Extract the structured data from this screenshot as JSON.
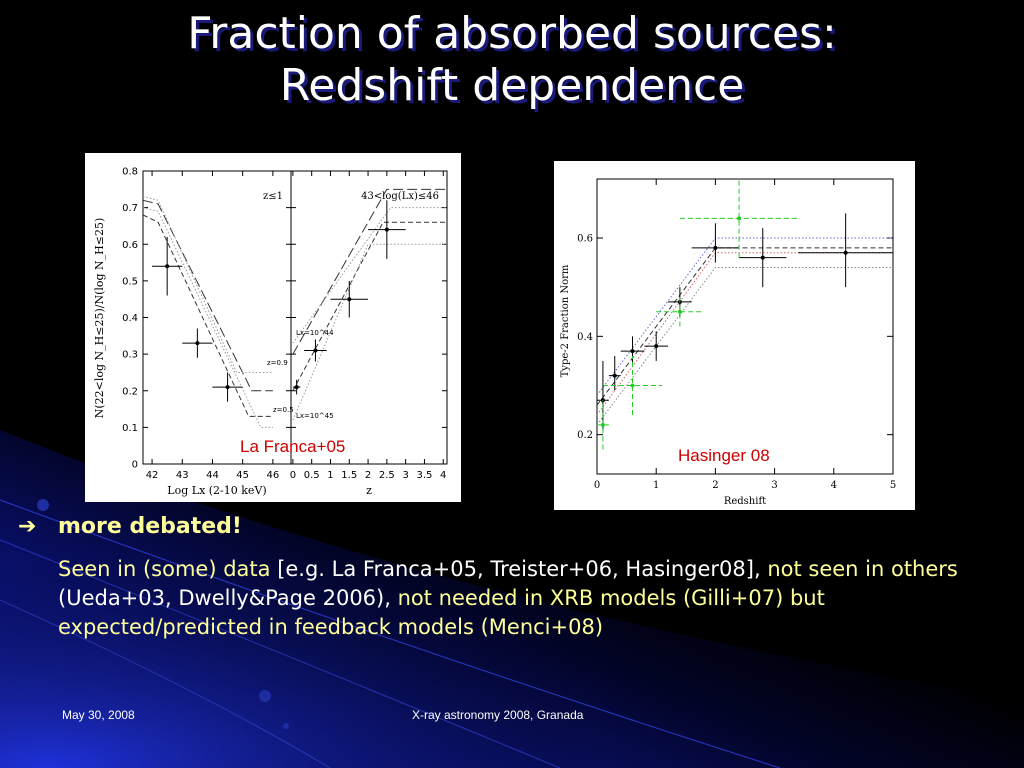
{
  "slide": {
    "title_line1": "Fraction of absorbed sources:",
    "title_line2": "Redshift dependence",
    "bullet_label": "more debated!",
    "body": {
      "p1": "Seen in (some) data ",
      "p2": "[e.g. La Franca+05, Treister+06, Hasinger08],",
      "p3": "not seen in others ",
      "p4": "(Ueda+03, Dwelly&Page 2006),",
      "p5": " not needed in XRB models (Gilli+07) but expected/predicted  in feedback models (Menci+08)"
    },
    "footer_date": "May 30, 2008",
    "footer_event": "X-ray astronomy 2008, Granada",
    "colors": {
      "background": "#000000",
      "title": "#ffffff",
      "text": "#ffff99",
      "caption": "#cc0000"
    }
  },
  "chart_data": [
    {
      "type": "line",
      "caption": "La Franca+05",
      "ylabel": "N(22<log N_H≤25)/N(log N_H≤25)",
      "ylim": [
        0,
        0.8
      ],
      "yticks": [
        "0",
        "0.1",
        "0.2",
        "0.3",
        "0.4",
        "0.5",
        "0.6",
        "0.7",
        "0.8"
      ],
      "panels": [
        {
          "annotation": "z≤1",
          "xlabel": "Log Lx (2-10 keV)",
          "xlim": [
            41.7,
            46.6
          ],
          "xticks": [
            "42",
            "43",
            "44",
            "45",
            "46"
          ],
          "points": [
            {
              "x": 42.5,
              "y": 0.54,
              "xerr": 0.5,
              "yerr": [
                0.08,
                0.08
              ]
            },
            {
              "x": 43.5,
              "y": 0.33,
              "xerr": 0.5,
              "yerr": [
                0.04,
                0.04
              ]
            },
            {
              "x": 44.5,
              "y": 0.21,
              "xerr": 0.5,
              "yerr": [
                0.04,
                0.04
              ]
            }
          ],
          "models": [
            {
              "style": "dashed",
              "x": [
                41.7,
                42.2,
                45.2,
                46.0
              ],
              "y": [
                0.68,
                0.66,
                0.13,
                0.13
              ]
            },
            {
              "style": "longdash",
              "x": [
                41.7,
                42.2,
                45.3,
                46.0
              ],
              "y": [
                0.72,
                0.71,
                0.2,
                0.2
              ]
            },
            {
              "style": "dotted",
              "x": [
                41.7,
                42.2,
                44.8,
                46.0
              ],
              "y": [
                0.73,
                0.72,
                0.25,
                0.25
              ]
            },
            {
              "style": "dotted",
              "x": [
                41.7,
                42.2,
                45.6,
                46.0
              ],
              "y": [
                0.7,
                0.69,
                0.1,
                0.1
              ]
            }
          ],
          "labels": [
            "z=0.9",
            "z=0.5"
          ]
        },
        {
          "annotation": "43<log(Lx)≤46",
          "xlabel": "z",
          "xlim": [
            -0.05,
            4.1
          ],
          "xticks": [
            "0",
            "0.5",
            "1",
            "1.5",
            "2",
            "2.5",
            "3",
            "3.5",
            "4"
          ],
          "points": [
            {
              "x": 0.1,
              "y": 0.21,
              "xerr": 0.1,
              "yerr": [
                0.02,
                0.02
              ]
            },
            {
              "x": 0.6,
              "y": 0.31,
              "xerr": 0.3,
              "yerr": [
                0.03,
                0.03
              ]
            },
            {
              "x": 1.5,
              "y": 0.45,
              "xerr": 0.5,
              "yerr": [
                0.05,
                0.05
              ]
            },
            {
              "x": 2.5,
              "y": 0.64,
              "xerr": 0.5,
              "yerr": [
                0.08,
                0.08
              ]
            }
          ],
          "models": [
            {
              "style": "dashed",
              "x": [
                0,
                2.4,
                4.1
              ],
              "y": [
                0.2,
                0.66,
                0.66
              ]
            },
            {
              "style": "longdash",
              "x": [
                0,
                2.5,
                4.1
              ],
              "y": [
                0.3,
                0.75,
                0.75
              ]
            },
            {
              "style": "dotted",
              "x": [
                0,
                2.0,
                4.1
              ],
              "y": [
                0.12,
                0.6,
                0.6
              ]
            },
            {
              "style": "dotted",
              "x": [
                0,
                2.6,
                4.1
              ],
              "y": [
                0.33,
                0.7,
                0.7
              ]
            }
          ],
          "labels": [
            "Lx=10^44",
            "Lx=10^45"
          ]
        }
      ]
    },
    {
      "type": "scatter",
      "caption": "Hasinger 08",
      "xlabel": "Redshift",
      "ylabel": "Type-2 Fraction Norm",
      "xlim": [
        0,
        5
      ],
      "ylim": [
        0.12,
        0.72
      ],
      "xticks": [
        "0",
        "1",
        "2",
        "3",
        "4",
        "5"
      ],
      "yticks": [
        "0.2",
        "0.4",
        "0.6"
      ],
      "series": [
        {
          "color": "#000000",
          "points": [
            {
              "x": 0.1,
              "y": 0.27,
              "xerr": 0.1,
              "yerr": [
                0.06,
                0.08
              ]
            },
            {
              "x": 0.3,
              "y": 0.32,
              "xerr": 0.1,
              "yerr": [
                0.03,
                0.04
              ]
            },
            {
              "x": 0.6,
              "y": 0.37,
              "xerr": 0.2,
              "yerr": [
                0.03,
                0.03
              ]
            },
            {
              "x": 1.0,
              "y": 0.38,
              "xerr": 0.2,
              "yerr": [
                0.03,
                0.03
              ]
            },
            {
              "x": 1.4,
              "y": 0.47,
              "xerr": 0.2,
              "yerr": [
                0.03,
                0.03
              ]
            },
            {
              "x": 2.0,
              "y": 0.58,
              "xerr": 0.4,
              "yerr": [
                0.03,
                0.05
              ]
            },
            {
              "x": 2.8,
              "y": 0.56,
              "xerr": 0.4,
              "yerr": [
                0.06,
                0.06
              ]
            },
            {
              "x": 4.2,
              "y": 0.57,
              "xerr": 0.8,
              "yerr": [
                0.07,
                0.08
              ]
            }
          ]
        },
        {
          "color": "#22cc22",
          "points": [
            {
              "x": 0.1,
              "y": 0.22,
              "xerr": 0.1,
              "yerr": [
                0.05,
                0.05
              ]
            },
            {
              "x": 0.6,
              "y": 0.3,
              "xerr": 0.5,
              "yerr": [
                0.06,
                0.06
              ]
            },
            {
              "x": 1.4,
              "y": 0.45,
              "xerr": 0.4,
              "yerr": [
                0.03,
                0.03
              ]
            },
            {
              "x": 2.4,
              "y": 0.64,
              "xerr": 1.0,
              "yerr": [
                0.08,
                0.08
              ]
            }
          ]
        }
      ],
      "models": [
        {
          "style": "dotted",
          "color": "#6666cc",
          "x": [
            0,
            2.0,
            5.0
          ],
          "y": [
            0.28,
            0.6,
            0.6
          ]
        },
        {
          "style": "dotted",
          "color": "#cc6666",
          "x": [
            0,
            2.0,
            5.0
          ],
          "y": [
            0.24,
            0.57,
            0.57
          ]
        },
        {
          "style": "dashed",
          "color": "#333333",
          "x": [
            0,
            2.0,
            5.0
          ],
          "y": [
            0.26,
            0.58,
            0.58
          ]
        },
        {
          "style": "dotted",
          "color": "#888888",
          "x": [
            0,
            2.0,
            5.0
          ],
          "y": [
            0.22,
            0.54,
            0.54
          ]
        }
      ]
    }
  ]
}
